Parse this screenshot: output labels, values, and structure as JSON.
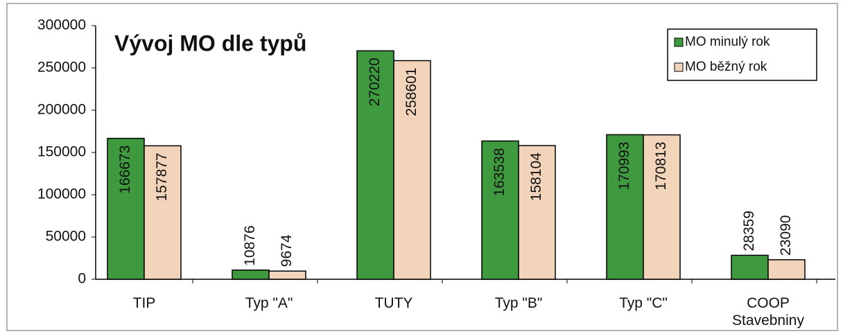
{
  "chart_data": {
    "type": "bar",
    "title": "Vývoj MO dle typů",
    "categories": [
      "TIP",
      "Typ \"A\"",
      "TUTY",
      "Typ \"B\"",
      "Typ \"C\"",
      "COOP Stavebniny"
    ],
    "series": [
      {
        "name": "MO minulý rok",
        "color": "#3f9a3f",
        "values": [
          166673,
          10876,
          270220,
          163538,
          170993,
          28359
        ]
      },
      {
        "name": "MO běžný rok",
        "color": "#f2d4ba",
        "values": [
          157877,
          9674,
          258601,
          158104,
          170813,
          23090
        ]
      }
    ],
    "ylim": [
      0,
      300000
    ],
    "yticks": [
      0,
      50000,
      100000,
      150000,
      200000,
      250000,
      300000
    ],
    "grid": false,
    "legend": "top-right"
  }
}
